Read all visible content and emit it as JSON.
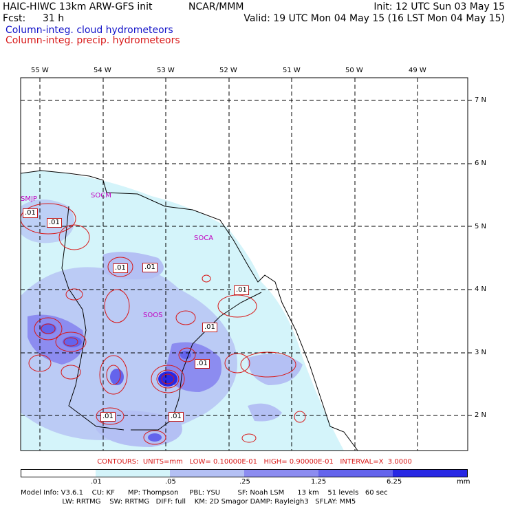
{
  "header": {
    "title": "HAIC-HIWC 13km ARW-GFS init",
    "org": "NCAR/MMM",
    "init": "Init: 12 UTC Sun 03 May 15",
    "fcst_label": "Fcst:",
    "fcst_value": "31 h",
    "valid": "Valid: 19 UTC Mon 04 May 15 (16 LST Mon 04 May 15)",
    "field1": "Column-integ. cloud hydrometeors",
    "field2": "Column-integ. precip. hydrometeors"
  },
  "colors": {
    "field1": "#1414c8",
    "field2": "#d81818",
    "coast": "#000000",
    "contour": "#d81818",
    "shade": [
      "#ffffff",
      "#d4f4fa",
      "#b4c0f4",
      "#8c8cf0",
      "#6464ec",
      "#2828e4"
    ]
  },
  "axes": {
    "lon_labels": [
      "55 W",
      "54 W",
      "53 W",
      "52 W",
      "51 W",
      "50 W",
      "49 W"
    ],
    "lat_labels": [
      "7 N",
      "6 N",
      "5 N",
      "4 N",
      "3 N",
      "2 N"
    ]
  },
  "stations": [
    {
      "id": "smjp",
      "label": "SMJP"
    },
    {
      "id": "socm",
      "label": "SOCM"
    },
    {
      "id": "soca",
      "label": "SOCA"
    },
    {
      "id": "soos",
      "label": "SOOS"
    }
  ],
  "contour_labels": [
    ".01",
    ".01",
    ".01",
    ".01",
    ".01",
    ".01",
    ".01",
    ".01",
    ".01"
  ],
  "contour_info": "CONTOURS:  UNITS=mm   LOW= 0.10000E-01   HIGH= 0.90000E-01   INTERVAL=X  3.0000",
  "colorbar": {
    "ticks": [
      ".01",
      ".05",
      ".25",
      "1.25",
      "6.25"
    ],
    "units": "mm"
  },
  "footer": {
    "line1": "Model Info: V3.6.1    CU: KF      MP: Thompson     PBL: YSU        SF: Noah LSM      13 km    51 levels   60 sec",
    "line2": "                   LW: RRTMG    SW: RRTMG   DIFF: full    KM: 2D Smagor DAMP: Rayleigh3   SFLAY: MM5"
  }
}
